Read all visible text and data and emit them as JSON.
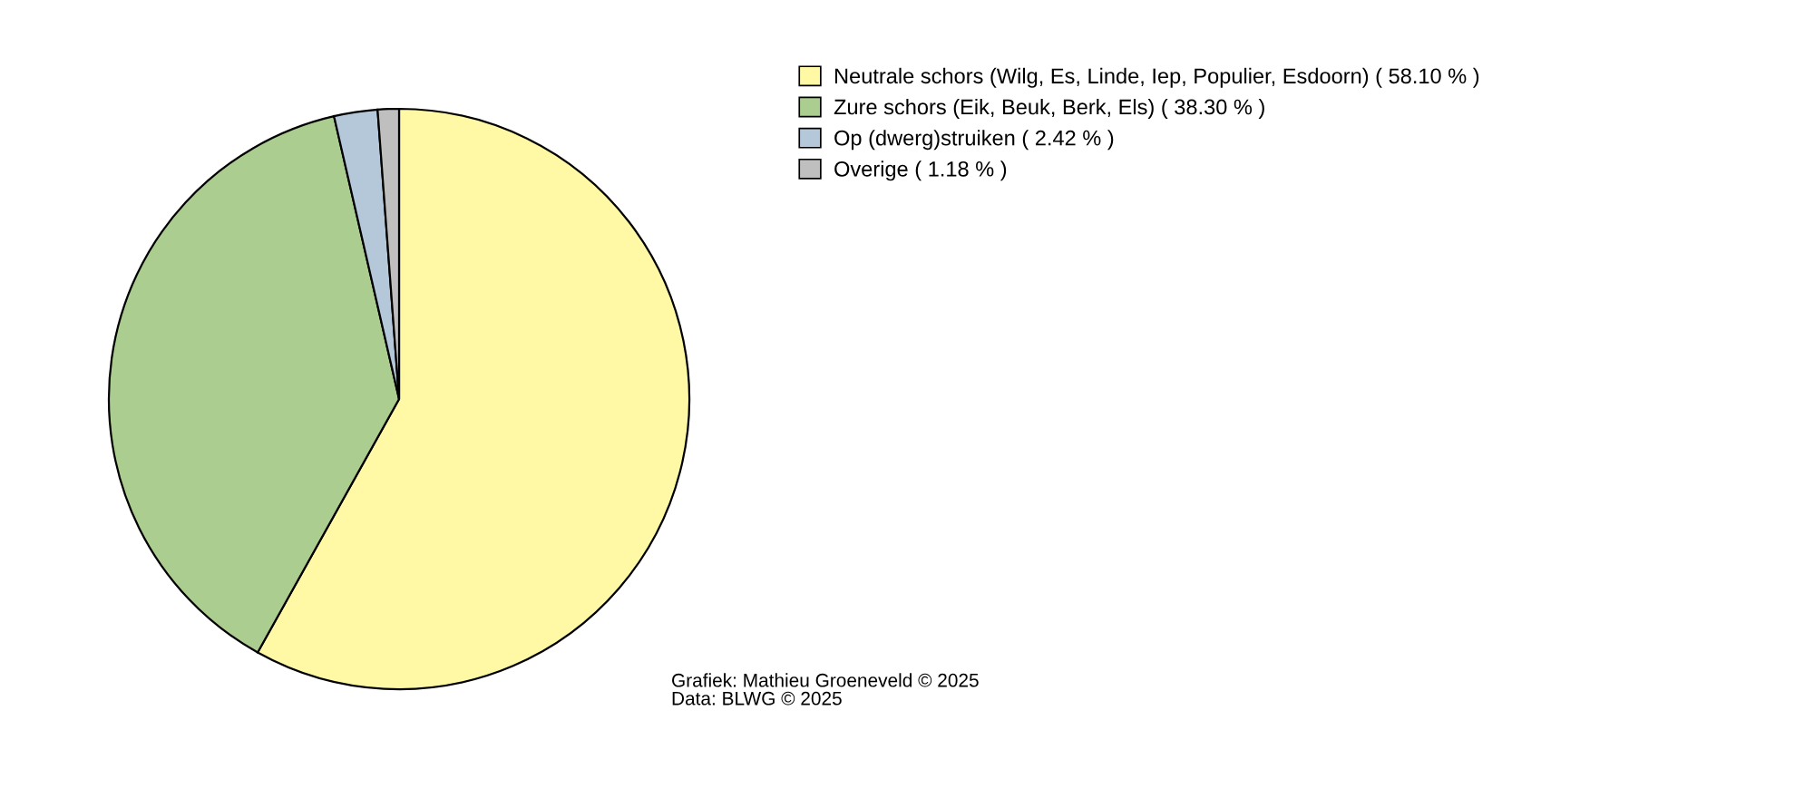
{
  "chart_data": {
    "type": "pie",
    "categories": [
      "Neutrale schors (Wilg, Es, Linde, Iep, Populier, Esdoorn) ( 58.10 % )",
      "Zure schors (Eik, Beuk, Berk, Els) ( 38.30 % )",
      "Op (dwerg)struiken ( 2.42 % )",
      "Overige ( 1.18 % )"
    ],
    "values": [
      58.1,
      38.3,
      2.42,
      1.18
    ],
    "colors": [
      "#fff8a5",
      "#abcd8f",
      "#b4c8da",
      "#bfbfbf"
    ],
    "legend": "top right",
    "annotations": [
      "Grafiek: Mathieu Groeneveld © 2025",
      "Data: BLWG © 2025"
    ]
  }
}
